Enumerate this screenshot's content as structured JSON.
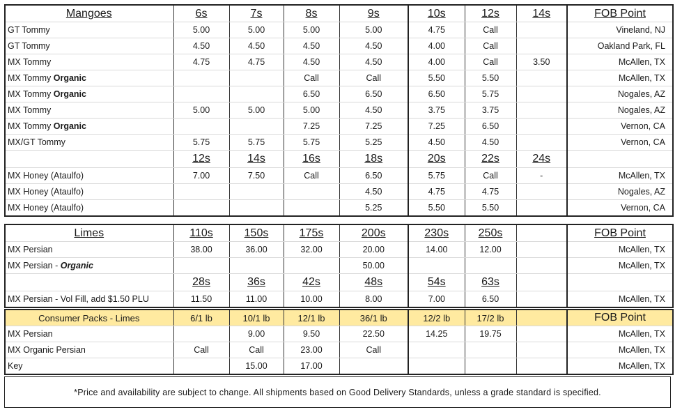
{
  "mangoes": {
    "title": "Mangoes",
    "sizes": [
      "6s",
      "7s",
      "8s",
      "9s",
      "10s",
      "12s",
      "14s"
    ],
    "fob_header": "FOB Point",
    "rows": [
      {
        "product": "GT Tommy",
        "organic": "",
        "prices": [
          "5.00",
          "5.00",
          "5.00",
          "5.00",
          "4.75",
          "Call",
          ""
        ],
        "fob": "Vineland, NJ"
      },
      {
        "product": "GT Tommy",
        "organic": "",
        "prices": [
          "4.50",
          "4.50",
          "4.50",
          "4.50",
          "4.00",
          "Call",
          ""
        ],
        "fob": "Oakland Park, FL"
      },
      {
        "product": "MX Tommy",
        "organic": "",
        "prices": [
          "4.75",
          "4.75",
          "4.50",
          "4.50",
          "4.00",
          "Call",
          "3.50"
        ],
        "fob": "McAllen, TX"
      },
      {
        "product": "MX Tommy ",
        "organic": "Organic",
        "prices": [
          "",
          "",
          "Call",
          "Call",
          "5.50",
          "5.50",
          ""
        ],
        "fob": "McAllen, TX"
      },
      {
        "product": "MX Tommy ",
        "organic": "Organic",
        "prices": [
          "",
          "",
          "6.50",
          "6.50",
          "6.50",
          "5.75",
          ""
        ],
        "fob": "Nogales, AZ"
      },
      {
        "product": "MX Tommy",
        "organic": "",
        "prices": [
          "5.00",
          "5.00",
          "5.00",
          "4.50",
          "3.75",
          "3.75",
          ""
        ],
        "fob": "Nogales, AZ"
      },
      {
        "product": "MX Tommy ",
        "organic": "Organic",
        "prices": [
          "",
          "",
          "7.25",
          "7.25",
          "7.25",
          "6.50",
          ""
        ],
        "fob": "Vernon, CA"
      },
      {
        "product": "MX/GT Tommy",
        "organic": "",
        "prices": [
          "5.75",
          "5.75",
          "5.75",
          "5.25",
          "4.50",
          "4.50",
          ""
        ],
        "fob": "Vernon, CA"
      }
    ],
    "honey_sizes": [
      "12s",
      "14s",
      "16s",
      "18s",
      "20s",
      "22s",
      "24s"
    ],
    "honey_rows": [
      {
        "product": "MX Honey  (Ataulfo)",
        "prices": [
          "7.00",
          "7.50",
          "Call",
          "6.50",
          "5.75",
          "Call",
          "-"
        ],
        "fob": "McAllen, TX"
      },
      {
        "product": "MX Honey  (Ataulfo)",
        "prices": [
          "",
          "",
          "",
          "4.50",
          "4.75",
          "4.75",
          ""
        ],
        "fob": "Nogales, AZ"
      },
      {
        "product": "MX Honey  (Ataulfo)",
        "prices": [
          "",
          "",
          "",
          "5.25",
          "5.50",
          "5.50",
          ""
        ],
        "fob": "Vernon, CA"
      }
    ]
  },
  "limes": {
    "title": "Limes",
    "sizes": [
      "110s",
      "150s",
      "175s",
      "200s",
      "230s",
      "250s",
      ""
    ],
    "fob_header": "FOB Point",
    "rows": [
      {
        "product": "MX Persian",
        "organic": "",
        "prices": [
          "38.00",
          "36.00",
          "32.00",
          "20.00",
          "14.00",
          "12.00",
          ""
        ],
        "fob": "McAllen, TX"
      },
      {
        "product": "MX Persian - ",
        "organic": "Organic",
        "prices": [
          "",
          "",
          "",
          "50.00",
          "",
          "",
          ""
        ],
        "fob": "McAllen, TX"
      }
    ],
    "vol_sizes": [
      "28s",
      "36s",
      "42s",
      "48s",
      "54s",
      "63s",
      ""
    ],
    "vol_rows": [
      {
        "product": "MX Persian - Vol Fill, add $1.50 PLU",
        "prices": [
          "11.50",
          "11.00",
          "10.00",
          "8.00",
          "7.00",
          "6.50",
          ""
        ],
        "fob": "McAllen, TX"
      }
    ]
  },
  "consumer": {
    "title": "Consumer Packs - Limes",
    "sizes": [
      "6/1 lb",
      "10/1 lb",
      "12/1 lb",
      "36/1 lb",
      "12/2 lb",
      "17/2 lb",
      ""
    ],
    "fob_header": "FOB Point",
    "rows": [
      {
        "product": "MX Persian",
        "prices": [
          "",
          "9.00",
          "9.50",
          "22.50",
          "14.25",
          "19.75",
          ""
        ],
        "fob": "McAllen, TX"
      },
      {
        "product": "MX Organic Persian",
        "prices": [
          "Call",
          "Call",
          "23.00",
          "Call",
          "",
          "",
          ""
        ],
        "fob": "McAllen, TX"
      },
      {
        "product": "Key",
        "prices": [
          "",
          "15.00",
          "17.00",
          "",
          "",
          "",
          ""
        ],
        "fob": "McAllen, TX"
      }
    ]
  },
  "footnote": "*Price and availability are subject to change.  All shipments based on Good Delivery Standards, unless a grade standard is specified.",
  "colors": {
    "consumer_header_bg": "#ffeaa0",
    "border": "#222222"
  }
}
